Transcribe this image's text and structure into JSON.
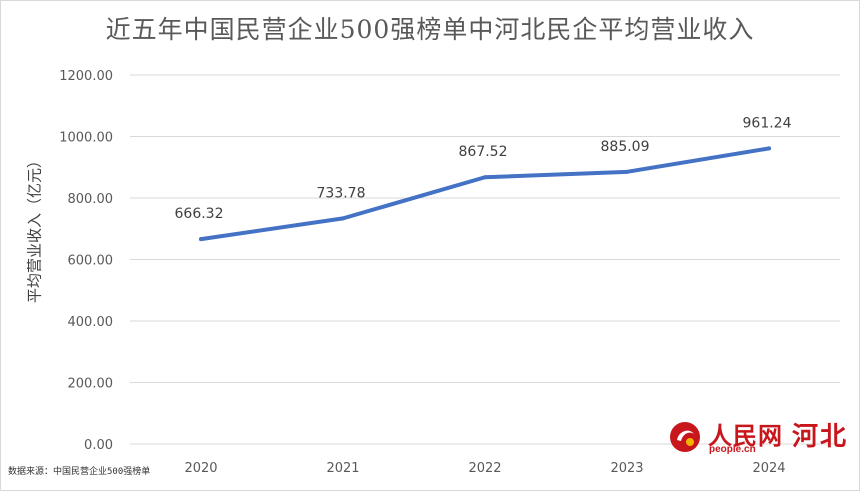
{
  "chart_data": {
    "type": "line",
    "title": "近五年中国民营企业500强榜单中河北民企平均营业收入",
    "xlabel": "",
    "ylabel": "平均营业收入（亿元）",
    "categories": [
      "2020",
      "2021",
      "2022",
      "2023",
      "2024"
    ],
    "series": [
      {
        "values": [
          666.32,
          733.78,
          867.52,
          885.09,
          961.24
        ]
      }
    ],
    "data_labels": [
      "666.32",
      "733.78",
      "867.52",
      "885.09",
      "961.24"
    ],
    "ylim": [
      0,
      1200
    ],
    "yticks": [
      "0.00",
      "200.00",
      "400.00",
      "600.00",
      "800.00",
      "1000.00",
      "1200.00"
    ],
    "grid": true,
    "legend": "none",
    "line_color": "#4472c4"
  },
  "footer": {
    "source": "数据来源：中国民营企业500强榜单"
  },
  "logo": {
    "brand": "人民网",
    "url": "people.cn",
    "region": "河北",
    "color": "#c8161d"
  }
}
